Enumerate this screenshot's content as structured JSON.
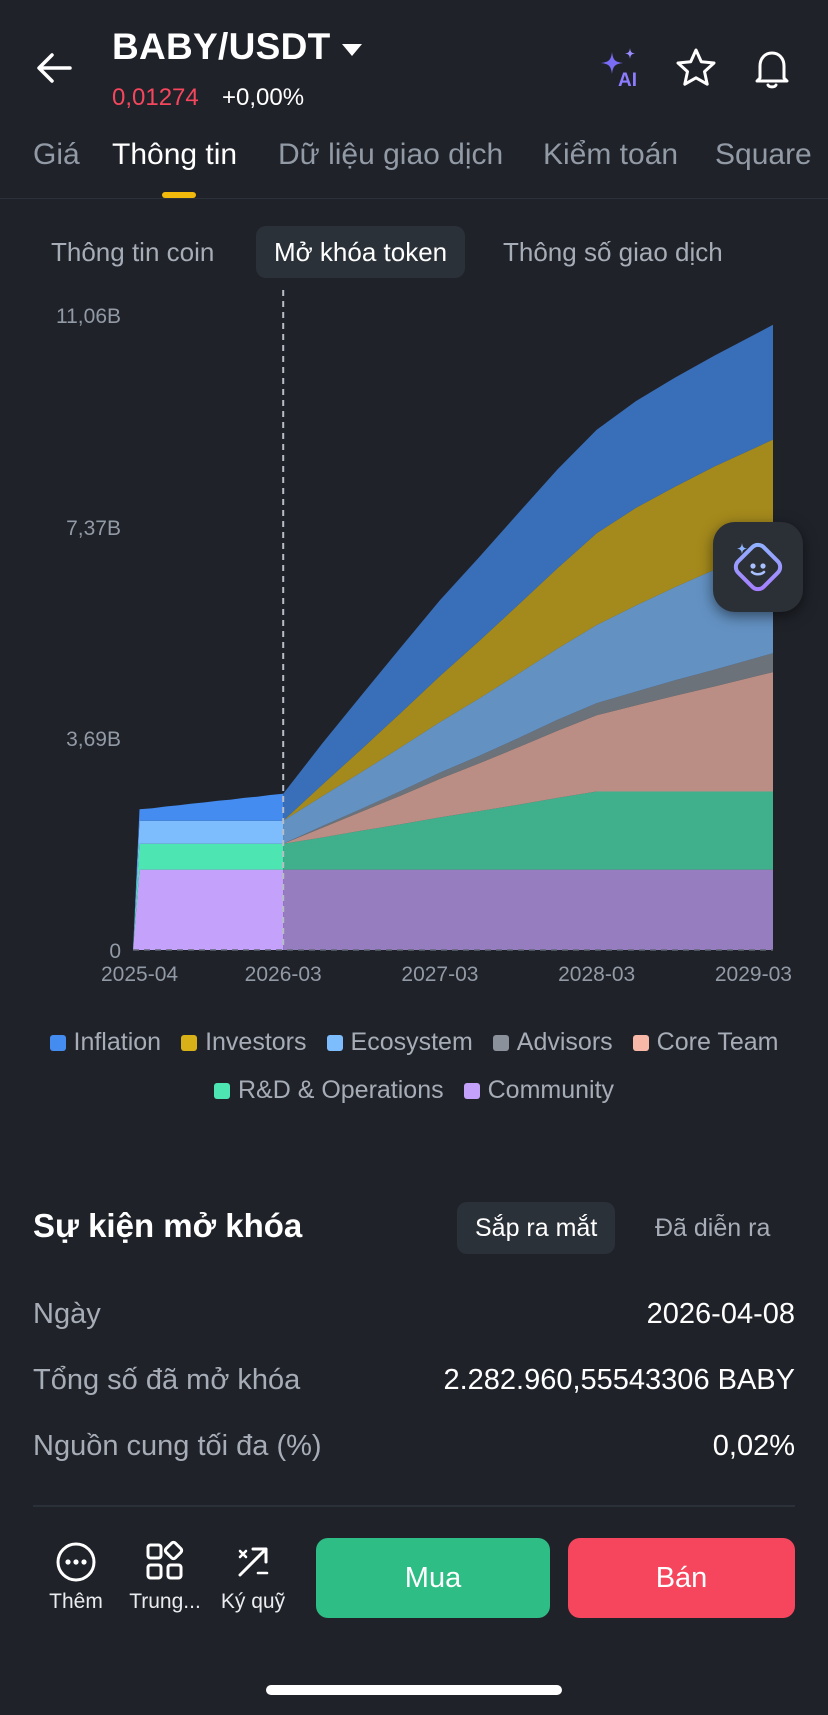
{
  "header": {
    "pair": "BABY/USDT",
    "price": "0,01274",
    "change": "+0,00%"
  },
  "tabs": [
    "Giá",
    "Thông tin",
    "Dữ liệu giao dịch",
    "Kiểm toán",
    "Square"
  ],
  "active_tab": "Thông tin",
  "sub_tabs": [
    "Thông tin coin",
    "Mở khóa token",
    "Thông số giao dịch"
  ],
  "active_sub_tab": "Mở khóa token",
  "chart_data": {
    "type": "area",
    "stacked": true,
    "y_ticks": [
      "0",
      "3,69B",
      "7,37B",
      "11,06B"
    ],
    "y_tick_values": [
      0,
      3.69,
      7.37,
      11.06
    ],
    "ylim": [
      0,
      11.06
    ],
    "x_ticks": [
      "2025-04",
      "2026-03",
      "2027-03",
      "2028-03",
      "2029-03"
    ],
    "x_tick_months": [
      0,
      11,
      23,
      35,
      47
    ],
    "xlim": [
      -0.5,
      48.5
    ],
    "today_month": 11,
    "future_opacity": 0.72,
    "x": [
      -0.5,
      0,
      1,
      2,
      3,
      4,
      5,
      6,
      7,
      8,
      9,
      10,
      11,
      14,
      17,
      20,
      23,
      26,
      29,
      32,
      35,
      38,
      41,
      44,
      48.5
    ],
    "series": [
      {
        "name": "Community",
        "color": "#c4a1fa",
        "values": [
          0,
          1.4,
          1.4,
          1.4,
          1.4,
          1.4,
          1.4,
          1.4,
          1.4,
          1.4,
          1.4,
          1.4,
          1.4,
          1.4,
          1.4,
          1.4,
          1.4,
          1.4,
          1.4,
          1.4,
          1.4,
          1.4,
          1.4,
          1.4,
          1.4
        ]
      },
      {
        "name": "R&D & Operations",
        "color": "#4de6b3",
        "values": [
          0,
          0.45,
          0.45,
          0.45,
          0.45,
          0.45,
          0.45,
          0.45,
          0.45,
          0.45,
          0.45,
          0.45,
          0.45,
          0.56,
          0.68,
          0.79,
          0.91,
          1.02,
          1.13,
          1.25,
          1.36,
          1.36,
          1.36,
          1.36,
          1.36
        ]
      },
      {
        "name": "Core Team",
        "color": "#f7b8a8",
        "values": [
          0,
          0,
          0,
          0,
          0,
          0,
          0,
          0,
          0,
          0,
          0,
          0,
          0,
          0.17,
          0.33,
          0.5,
          0.67,
          0.83,
          1.0,
          1.17,
          1.33,
          1.5,
          1.67,
          1.83,
          2.08
        ]
      },
      {
        "name": "Advisors",
        "color": "#8b919a",
        "values": [
          0,
          0,
          0,
          0,
          0,
          0,
          0,
          0,
          0,
          0,
          0,
          0,
          0,
          0.03,
          0.05,
          0.08,
          0.11,
          0.13,
          0.16,
          0.19,
          0.21,
          0.24,
          0.27,
          0.29,
          0.33
        ]
      },
      {
        "name": "Ecosystem",
        "color": "#7ebdfd",
        "values": [
          0,
          0.4,
          0.4,
          0.4,
          0.4,
          0.4,
          0.4,
          0.4,
          0.4,
          0.4,
          0.4,
          0.4,
          0.4,
          0.52,
          0.64,
          0.76,
          0.88,
          1.0,
          1.12,
          1.24,
          1.36,
          1.5,
          1.62,
          1.74,
          1.87
        ]
      },
      {
        "name": "Investors",
        "color": "#d8b118",
        "values": [
          0,
          0,
          0,
          0,
          0,
          0,
          0,
          0,
          0,
          0,
          0,
          0,
          0,
          0.2,
          0.4,
          0.6,
          0.8,
          1.0,
          1.2,
          1.4,
          1.6,
          1.7,
          1.75,
          1.8,
          1.85
        ]
      },
      {
        "name": "Inflation",
        "color": "#448cf0",
        "values": [
          0,
          0.2,
          0.22,
          0.25,
          0.27,
          0.3,
          0.32,
          0.35,
          0.37,
          0.4,
          0.42,
          0.45,
          0.47,
          0.72,
          0.94,
          1.14,
          1.32,
          1.46,
          1.6,
          1.72,
          1.8,
          1.86,
          1.9,
          1.93,
          2.0
        ]
      }
    ],
    "legend_row1": [
      "Inflation",
      "Investors",
      "Ecosystem",
      "Advisors",
      "Core Team"
    ],
    "legend_row2": [
      "R&D & Operations",
      "Community"
    ]
  },
  "unlock_events": {
    "title": "Sự kiện mở khóa",
    "tabs": [
      "Sắp ra mắt",
      "Đã diễn ra"
    ],
    "rows": [
      {
        "label": "Ngày",
        "value": "2026-04-08"
      },
      {
        "label": "Tổng số đã mở khóa",
        "value": "2.282.960,55543306 BABY"
      },
      {
        "label": "Nguồn cung tối đa (%)",
        "value": "0,02%"
      }
    ]
  },
  "bottom_bar": {
    "more": "Thêm",
    "center": "Trung...",
    "margin": "Ký quỹ",
    "buy": "Mua",
    "sell": "Bán"
  },
  "colors": {
    "background": "#1f2229",
    "accent": "#f0b90b",
    "buy": "#2ebd85",
    "sell": "#f6465d"
  }
}
